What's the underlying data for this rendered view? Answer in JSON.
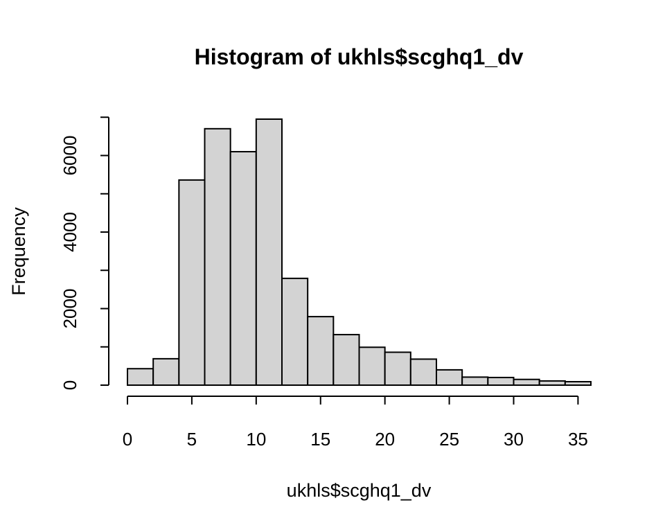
{
  "chart_data": {
    "type": "bar",
    "title": "Histogram of ukhls$scghq1_dv",
    "xlabel": "ukhls$scghq1_dv",
    "ylabel": "Frequency",
    "bin_edges": [
      0,
      2,
      4,
      6,
      8,
      10,
      12,
      14,
      16,
      18,
      20,
      22,
      24,
      26,
      28,
      30,
      32,
      34,
      36
    ],
    "values": [
      430,
      690,
      5360,
      6700,
      6100,
      6950,
      2790,
      1790,
      1320,
      990,
      860,
      680,
      400,
      210,
      200,
      150,
      110,
      90
    ],
    "xlim": [
      0,
      36
    ],
    "ylim": [
      0,
      6950
    ],
    "x_ticks": [
      0,
      5,
      10,
      15,
      20,
      25,
      30,
      35
    ],
    "x_tick_labels": [
      "0",
      "5",
      "10",
      "15",
      "20",
      "25",
      "30",
      "35"
    ],
    "y_ticks": [
      0,
      1000,
      2000,
      3000,
      4000,
      5000,
      6000,
      7000
    ],
    "y_tick_labels": [
      "0",
      "",
      "2000",
      "",
      "4000",
      "",
      "6000",
      ""
    ],
    "grid": false,
    "legend": "none",
    "bar_color": "#d3d3d3",
    "edge_color": "#000000"
  }
}
